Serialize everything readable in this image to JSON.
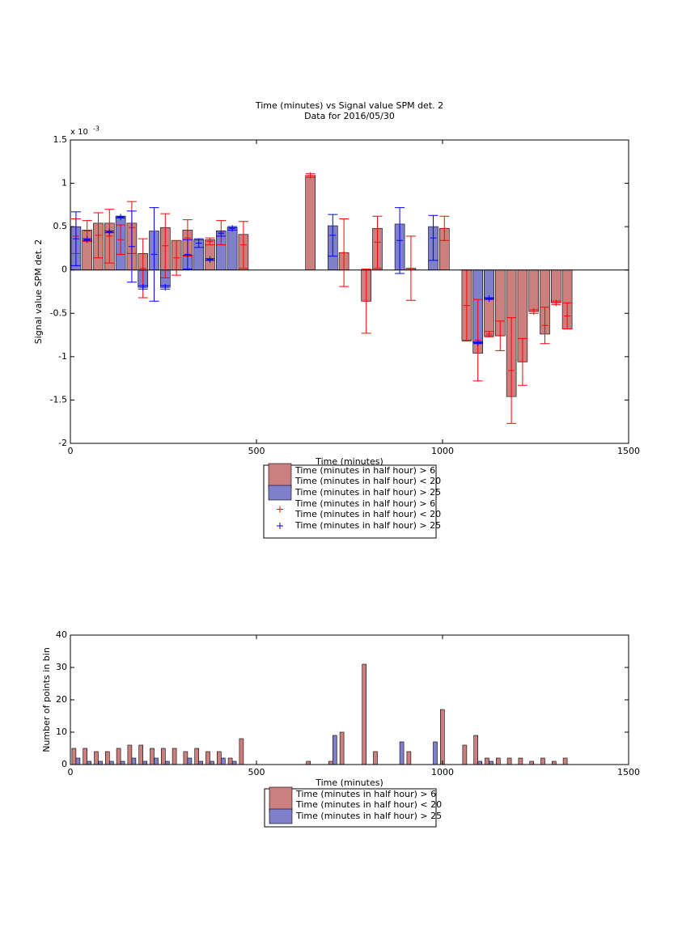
{
  "chart_data": [
    {
      "type": "bar",
      "title": "Time (minutes) vs Signal value SPM det. 2",
      "subtitle": "Data for 2016/05/30",
      "x_label": "Time (minutes)",
      "y_label": "Signal value SPM det. 2",
      "y_multiplier": {
        "base": "x 10",
        "exponent": "-3"
      },
      "xlim": [
        0,
        1500
      ],
      "xticks": [
        0,
        500,
        1000,
        1500
      ],
      "ylim": [
        -2,
        1.5
      ],
      "yticks": [
        -2,
        -1.5,
        -1,
        -0.5,
        0,
        0.5,
        1,
        1.5
      ],
      "series": [
        {
          "name": "Time (minutes in half hour) > 6\nTime (minutes in half hour) < 20",
          "style": "bar",
          "color": "#cc7f7f",
          "x": [
            45,
            75,
            105,
            165,
            195,
            255,
            285,
            315,
            375,
            465,
            645,
            735,
            795,
            825,
            915,
            1005,
            1065,
            1095,
            1125,
            1155,
            1185,
            1215,
            1245,
            1275,
            1305,
            1335
          ],
          "values": [
            0.46,
            0.54,
            0.54,
            0.54,
            0.19,
            0.49,
            0.34,
            0.46,
            0.35,
            0.41,
            1.09,
            0.2,
            -0.36,
            0.48,
            0.02,
            0.48,
            -0.81,
            -0.96,
            -0.76,
            -0.76,
            -1.46,
            -1.06,
            -0.48,
            -0.74,
            -0.38,
            -0.68
          ]
        },
        {
          "name": "Time (minutes in half hour) > 25",
          "style": "bar",
          "color": "#7f7fcc",
          "x": [
            15,
            135,
            195,
            225,
            255,
            315,
            345,
            405,
            435,
            705,
            885,
            975,
            1095,
            1125
          ],
          "values": [
            0.5,
            0.62,
            -0.2,
            0.45,
            -0.2,
            0.17,
            0.35,
            0.45,
            0.49,
            0.51,
            0.53,
            0.5,
            -0.84,
            -0.33
          ]
        },
        {
          "name": "Time (minutes in half hour) > 6\nTime (minutes in half hour) < 20",
          "style": "errorbar",
          "color": "#ff0000",
          "x": [
            15,
            45,
            75,
            105,
            135,
            165,
            195,
            255,
            285,
            315,
            375,
            405,
            465,
            645,
            735,
            795,
            825,
            915,
            1005,
            1065,
            1095,
            1125,
            1155,
            1185,
            1215,
            1245,
            1275,
            1305,
            1335
          ],
          "values": [
            0.39,
            0.45,
            0.4,
            0.39,
            0.35,
            0.49,
            0.02,
            0.28,
            0.14,
            0.37,
            0.33,
            0.43,
            0.29,
            1.09,
            0.2,
            -0.36,
            0.32,
            0.02,
            0.48,
            -0.41,
            -0.81,
            -0.74,
            -0.76,
            -1.16,
            -1.06,
            -0.48,
            -0.64,
            -0.38,
            -0.53
          ],
          "errors": [
            0.2,
            0.12,
            0.26,
            0.31,
            0.17,
            0.3,
            0.34,
            0.37,
            0.2,
            0.21,
            0.04,
            0.14,
            0.27,
            0.02,
            0.39,
            0.37,
            0.3,
            0.37,
            0.14,
            0.41,
            0.47,
            0.03,
            0.17,
            0.61,
            0.27,
            0.02,
            0.21,
            0.02,
            0.15
          ]
        },
        {
          "name": "Time (minutes in half hour) > 25",
          "style": "errorbar",
          "color": "#0000ff",
          "x": [
            15,
            45,
            105,
            135,
            165,
            195,
            225,
            255,
            315,
            345,
            375,
            405,
            435,
            705,
            885,
            975,
            1095,
            1125
          ],
          "values": [
            0.36,
            0.35,
            0.44,
            0.61,
            0.27,
            -0.2,
            0.18,
            -0.2,
            0.18,
            0.31,
            0.12,
            0.42,
            0.48,
            0.4,
            0.34,
            0.37,
            -0.84,
            -0.33
          ],
          "errors": [
            0.31,
            0.01,
            0.01,
            0.01,
            0.41,
            0.02,
            0.54,
            0.02,
            0.17,
            0.05,
            0.01,
            0.03,
            0.02,
            0.24,
            0.38,
            0.26,
            0.01,
            0.01
          ]
        }
      ]
    },
    {
      "type": "grouped_bar",
      "x_label": "Time (minutes)",
      "y_label": "Number of points in bin",
      "xlim": [
        0,
        1500
      ],
      "xticks": [
        0,
        500,
        1000,
        1500
      ],
      "ylim": [
        0,
        40
      ],
      "yticks": [
        0,
        10,
        20,
        30,
        40
      ],
      "x": [
        15,
        45,
        75,
        105,
        135,
        165,
        195,
        225,
        255,
        285,
        315,
        345,
        375,
        405,
        435,
        465,
        645,
        705,
        735,
        795,
        825,
        885,
        915,
        975,
        1005,
        1065,
        1095,
        1125,
        1155,
        1185,
        1215,
        1245,
        1275,
        1305,
        1335
      ],
      "series": [
        {
          "name": "Time (minutes in half hour) > 6\nTime (minutes in half hour) < 20",
          "style": "bar",
          "color": "#cc7f7f",
          "values": [
            5,
            5,
            4,
            4,
            5,
            6,
            6,
            5,
            5,
            5,
            4,
            5,
            4,
            4,
            2,
            8,
            1,
            1,
            10,
            31,
            4,
            0,
            4,
            0,
            17,
            6,
            9,
            2,
            2,
            2,
            2,
            1,
            2,
            1,
            2
          ]
        },
        {
          "name": "Time (minutes in half hour) > 25",
          "style": "bar",
          "color": "#7f7fcc",
          "values": [
            2,
            1,
            1,
            1,
            1,
            2,
            1,
            2,
            1,
            0,
            2,
            1,
            1,
            2,
            1,
            0,
            0,
            9,
            0,
            0,
            0,
            7,
            0,
            7,
            0,
            0,
            1,
            1,
            0,
            0,
            0,
            0,
            0,
            0,
            0
          ]
        }
      ]
    }
  ]
}
